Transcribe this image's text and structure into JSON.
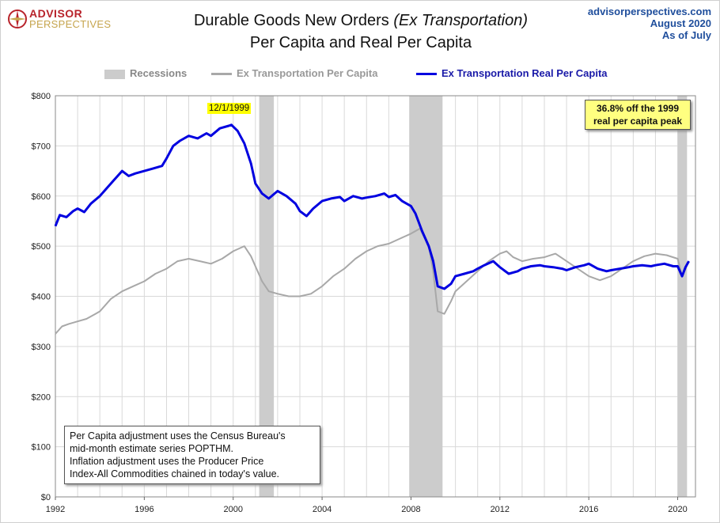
{
  "header": {
    "logo_top": "ADVISOR",
    "logo_bottom": "PERSPECTIVES",
    "title_main": "Durable Goods New Orders",
    "title_paren": "(Ex Transportation)",
    "title_sub": "Per Capita and Real Per Capita",
    "source_site": "advisorperspectives.com",
    "source_date": "August  2020",
    "source_asof": "As  of July"
  },
  "annotations": {
    "peak_label": "12/1/1999",
    "callout_line1": "36.8% off the 1999",
    "callout_line2": "real per capita peak",
    "note_lines": [
      "Per Capita adjustment uses the Census Bureau's",
      "mid-month estimate series POPTHM.",
      "Inflation adjustment uses the Producer Price",
      "Index-All Commodities chained in today's value."
    ]
  },
  "colors": {
    "real_line": "#0000e0",
    "nominal_line": "#a8a8a8",
    "recession": "#cccccc",
    "grid": "#d9d9d9"
  },
  "chart_data": {
    "type": "line",
    "title": "Durable Goods New Orders (Ex Transportation) Per Capita and Real Per Capita",
    "xlabel": "",
    "ylabel": "",
    "xlim": [
      1992.0,
      2020.8
    ],
    "ylim": [
      0,
      800
    ],
    "y_ticks": [
      0,
      100,
      200,
      300,
      400,
      500,
      600,
      700,
      800
    ],
    "y_tick_labels": [
      "$0",
      "$100",
      "$200",
      "$300",
      "$400",
      "$500",
      "$600",
      "$700",
      "$800"
    ],
    "x_ticks": [
      1992,
      1996,
      2000,
      2004,
      2008,
      2012,
      2016,
      2020
    ],
    "x_tick_labels": [
      "1992",
      "1996",
      "2000",
      "2004",
      "2008",
      "2012",
      "2016",
      "2020"
    ],
    "legend": {
      "placement": "top",
      "entries": [
        "Recessions",
        "Ex Transportation Per Capita",
        "Ex Transportation Real Per Capita"
      ]
    },
    "recessions": [
      {
        "start": 2001.17,
        "end": 2001.83
      },
      {
        "start": 2007.92,
        "end": 2009.42
      },
      {
        "start": 2020.0,
        "end": 2020.42
      }
    ],
    "series": [
      {
        "name": "Ex Transportation Real Per Capita",
        "color": "#0000e0",
        "x": [
          1992.0,
          1992.2,
          1992.5,
          1992.8,
          1993.0,
          1993.3,
          1993.6,
          1994.0,
          1994.3,
          1994.6,
          1995.0,
          1995.3,
          1995.6,
          1996.0,
          1996.4,
          1996.8,
          1997.0,
          1997.3,
          1997.6,
          1998.0,
          1998.4,
          1998.8,
          1999.0,
          1999.4,
          1999.8,
          1999.92,
          2000.2,
          2000.5,
          2000.8,
          2001.0,
          2001.3,
          2001.6,
          2002.0,
          2002.4,
          2002.8,
          2003.0,
          2003.3,
          2003.6,
          2004.0,
          2004.4,
          2004.8,
          2005.0,
          2005.4,
          2005.8,
          2006.0,
          2006.4,
          2006.8,
          2007.0,
          2007.3,
          2007.6,
          2008.0,
          2008.2,
          2008.5,
          2008.8,
          2009.0,
          2009.2,
          2009.5,
          2009.8,
          2010.0,
          2010.4,
          2010.8,
          2011.0,
          2011.3,
          2011.7,
          2012.0,
          2012.4,
          2012.8,
          2013.0,
          2013.4,
          2013.8,
          2014.0,
          2014.4,
          2014.8,
          2015.0,
          2015.4,
          2015.8,
          2016.0,
          2016.4,
          2016.8,
          2017.0,
          2017.4,
          2017.8,
          2018.0,
          2018.4,
          2018.8,
          2019.0,
          2019.4,
          2019.8,
          2020.0,
          2020.2,
          2020.35,
          2020.5
        ],
        "values": [
          540,
          562,
          558,
          570,
          575,
          568,
          585,
          600,
          615,
          630,
          650,
          640,
          645,
          650,
          655,
          660,
          675,
          700,
          710,
          720,
          715,
          725,
          720,
          735,
          740,
          742,
          730,
          705,
          665,
          625,
          605,
          595,
          610,
          600,
          585,
          570,
          560,
          575,
          590,
          595,
          598,
          590,
          600,
          595,
          597,
          600,
          605,
          598,
          602,
          590,
          580,
          565,
          530,
          500,
          470,
          420,
          415,
          425,
          440,
          445,
          450,
          455,
          462,
          470,
          458,
          445,
          450,
          455,
          460,
          462,
          460,
          458,
          455,
          452,
          458,
          462,
          465,
          455,
          450,
          452,
          455,
          458,
          460,
          462,
          460,
          462,
          465,
          460,
          460,
          440,
          458,
          470
        ]
      },
      {
        "name": "Ex Transportation Per Capita",
        "color": "#a8a8a8",
        "x": [
          1992.0,
          1992.3,
          1992.6,
          1993.0,
          1993.4,
          1993.8,
          1994.0,
          1994.5,
          1995.0,
          1995.5,
          1996.0,
          1996.5,
          1997.0,
          1997.5,
          1998.0,
          1998.5,
          1999.0,
          1999.5,
          2000.0,
          2000.5,
          2000.8,
          2001.0,
          2001.3,
          2001.6,
          2002.0,
          2002.5,
          2003.0,
          2003.5,
          2004.0,
          2004.5,
          2005.0,
          2005.5,
          2006.0,
          2006.5,
          2007.0,
          2007.5,
          2008.0,
          2008.4,
          2008.8,
          2009.0,
          2009.2,
          2009.5,
          2009.8,
          2010.0,
          2010.5,
          2011.0,
          2011.5,
          2012.0,
          2012.3,
          2012.6,
          2013.0,
          2013.5,
          2014.0,
          2014.5,
          2015.0,
          2015.5,
          2016.0,
          2016.5,
          2017.0,
          2017.5,
          2018.0,
          2018.5,
          2019.0,
          2019.5,
          2020.0,
          2020.2,
          2020.35,
          2020.5
        ],
        "values": [
          325,
          340,
          345,
          350,
          355,
          365,
          370,
          395,
          410,
          420,
          430,
          445,
          455,
          470,
          475,
          470,
          465,
          475,
          490,
          500,
          480,
          460,
          430,
          410,
          405,
          400,
          400,
          405,
          420,
          440,
          455,
          475,
          490,
          500,
          505,
          515,
          525,
          535,
          500,
          450,
          370,
          365,
          390,
          410,
          430,
          450,
          470,
          485,
          490,
          478,
          470,
          475,
          478,
          485,
          470,
          455,
          440,
          432,
          440,
          455,
          470,
          480,
          485,
          482,
          475,
          440,
          455,
          470
        ]
      }
    ]
  }
}
